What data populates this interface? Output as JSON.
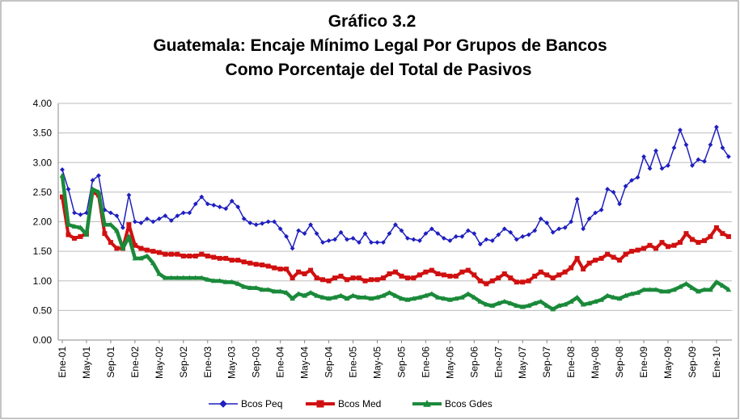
{
  "chart_data": {
    "type": "line",
    "title": "Gráfico 3.2",
    "subtitle": [
      "Guatemala: Encaje Mínimo Legal Por Grupos de Bancos",
      "Como Porcentaje del Total de Pasivos"
    ],
    "categories": [
      "Ene-01",
      null,
      null,
      null,
      "May-01",
      null,
      null,
      null,
      "Sep-01",
      null,
      null,
      null,
      "Ene-02",
      null,
      null,
      null,
      "May-02",
      null,
      null,
      null,
      "Sep-02",
      null,
      null,
      null,
      "Ene-03",
      null,
      null,
      null,
      "May-03",
      null,
      null,
      null,
      "Sep-03",
      null,
      null,
      null,
      "Ene-04",
      null,
      null,
      null,
      "May-04",
      null,
      null,
      null,
      "Sep-04",
      null,
      null,
      null,
      "Ene-05",
      null,
      null,
      null,
      "May-05",
      null,
      null,
      null,
      "Sep-05",
      null,
      null,
      null,
      "Ene-06",
      null,
      null,
      null,
      "May-06",
      null,
      null,
      null,
      "Sep-06",
      null,
      null,
      null,
      "Ene-07",
      null,
      null,
      null,
      "May-07",
      null,
      null,
      null,
      "Sep-07",
      null,
      null,
      null,
      "Ene-08",
      null,
      null,
      null,
      "May-08",
      null,
      null,
      null,
      "Sep-08",
      null,
      null,
      null,
      "Ene-09",
      null,
      null,
      null,
      "May-09",
      null,
      null,
      null,
      "Sep-09",
      null,
      null,
      null,
      "Ene-10",
      null,
      null
    ],
    "series": [
      {
        "name": "Bcos Peq",
        "color": "#1f1fbf",
        "marker": "diamond",
        "width": 1.5,
        "values": [
          2.88,
          2.55,
          2.15,
          2.12,
          2.15,
          2.7,
          2.78,
          2.2,
          2.15,
          2.1,
          1.9,
          2.45,
          2.0,
          1.98,
          2.05,
          2.0,
          2.05,
          2.1,
          2.02,
          2.1,
          2.15,
          2.15,
          2.3,
          2.42,
          2.3,
          2.28,
          2.25,
          2.22,
          2.35,
          2.25,
          2.05,
          1.98,
          1.95,
          1.97,
          2.0,
          2.0,
          1.88,
          1.75,
          1.55,
          1.85,
          1.8,
          1.95,
          1.8,
          1.65,
          1.68,
          1.7,
          1.82,
          1.7,
          1.72,
          1.65,
          1.8,
          1.65,
          1.65,
          1.65,
          1.8,
          1.95,
          1.85,
          1.72,
          1.7,
          1.68,
          1.8,
          1.88,
          1.8,
          1.72,
          1.68,
          1.75,
          1.75,
          1.85,
          1.8,
          1.62,
          1.7,
          1.68,
          1.78,
          1.88,
          1.82,
          1.7,
          1.75,
          1.78,
          1.85,
          2.05,
          1.98,
          1.82,
          1.88,
          1.9,
          2.0,
          2.38,
          1.88,
          2.05,
          2.15,
          2.2,
          2.55,
          2.5,
          2.3,
          2.6,
          2.7,
          2.75,
          3.1,
          2.9,
          3.2,
          2.9,
          2.95,
          3.25,
          3.55,
          3.3,
          2.95,
          3.05,
          3.02,
          3.3,
          3.6,
          3.25,
          3.1
        ]
      },
      {
        "name": "Bcos Med",
        "color": "#d01010",
        "marker": "square",
        "width": 4,
        "values": [
          2.42,
          1.78,
          1.72,
          1.75,
          1.8,
          2.5,
          2.45,
          1.8,
          1.65,
          1.55,
          1.55,
          1.95,
          1.6,
          1.55,
          1.52,
          1.5,
          1.48,
          1.45,
          1.45,
          1.45,
          1.42,
          1.42,
          1.42,
          1.45,
          1.42,
          1.4,
          1.38,
          1.38,
          1.35,
          1.35,
          1.32,
          1.3,
          1.28,
          1.27,
          1.25,
          1.22,
          1.2,
          1.2,
          1.05,
          1.15,
          1.12,
          1.18,
          1.05,
          1.02,
          1.0,
          1.05,
          1.08,
          1.02,
          1.05,
          1.05,
          1.0,
          1.02,
          1.02,
          1.05,
          1.12,
          1.15,
          1.08,
          1.05,
          1.05,
          1.1,
          1.15,
          1.18,
          1.12,
          1.1,
          1.08,
          1.08,
          1.15,
          1.18,
          1.1,
          1.0,
          0.95,
          1.0,
          1.05,
          1.12,
          1.05,
          0.98,
          0.98,
          1.0,
          1.08,
          1.15,
          1.1,
          1.05,
          1.1,
          1.15,
          1.22,
          1.38,
          1.2,
          1.3,
          1.35,
          1.38,
          1.45,
          1.4,
          1.35,
          1.45,
          1.5,
          1.52,
          1.55,
          1.6,
          1.55,
          1.65,
          1.58,
          1.6,
          1.65,
          1.8,
          1.7,
          1.65,
          1.68,
          1.75,
          1.9,
          1.8,
          1.75
        ]
      },
      {
        "name": "Bcos Gdes",
        "color": "#1a8a3a",
        "marker": "triangle",
        "width": 4.5,
        "values": [
          2.78,
          1.95,
          1.92,
          1.9,
          1.78,
          2.55,
          2.5,
          1.95,
          1.95,
          1.85,
          1.55,
          1.75,
          1.38,
          1.38,
          1.42,
          1.3,
          1.12,
          1.05,
          1.05,
          1.05,
          1.05,
          1.05,
          1.05,
          1.05,
          1.02,
          1.0,
          1.0,
          0.98,
          0.98,
          0.95,
          0.9,
          0.88,
          0.88,
          0.85,
          0.85,
          0.82,
          0.82,
          0.8,
          0.7,
          0.78,
          0.75,
          0.8,
          0.75,
          0.72,
          0.7,
          0.72,
          0.75,
          0.7,
          0.75,
          0.72,
          0.72,
          0.7,
          0.72,
          0.75,
          0.8,
          0.75,
          0.7,
          0.68,
          0.7,
          0.72,
          0.75,
          0.78,
          0.72,
          0.7,
          0.68,
          0.7,
          0.72,
          0.78,
          0.72,
          0.65,
          0.6,
          0.58,
          0.62,
          0.65,
          0.62,
          0.58,
          0.56,
          0.58,
          0.62,
          0.65,
          0.58,
          0.52,
          0.58,
          0.6,
          0.65,
          0.72,
          0.6,
          0.62,
          0.65,
          0.68,
          0.75,
          0.72,
          0.7,
          0.75,
          0.78,
          0.8,
          0.85,
          0.85,
          0.85,
          0.82,
          0.82,
          0.85,
          0.9,
          0.95,
          0.88,
          0.82,
          0.85,
          0.85,
          0.98,
          0.92,
          0.85
        ]
      }
    ],
    "ylim": [
      0,
      4
    ],
    "yticks": [
      {
        "value": 0,
        "label": "0.00"
      },
      {
        "value": 0.5,
        "label": "0.50"
      },
      {
        "value": 1,
        "label": "1.00"
      },
      {
        "value": 1.5,
        "label": "1.50"
      },
      {
        "value": 2,
        "label": "2.00"
      },
      {
        "value": 2.5,
        "label": "2.50"
      },
      {
        "value": 3,
        "label": "3.00"
      },
      {
        "value": 3.5,
        "label": "3.50"
      },
      {
        "value": 4,
        "label": "4.00"
      }
    ],
    "grid": true,
    "legend": "bottom"
  }
}
